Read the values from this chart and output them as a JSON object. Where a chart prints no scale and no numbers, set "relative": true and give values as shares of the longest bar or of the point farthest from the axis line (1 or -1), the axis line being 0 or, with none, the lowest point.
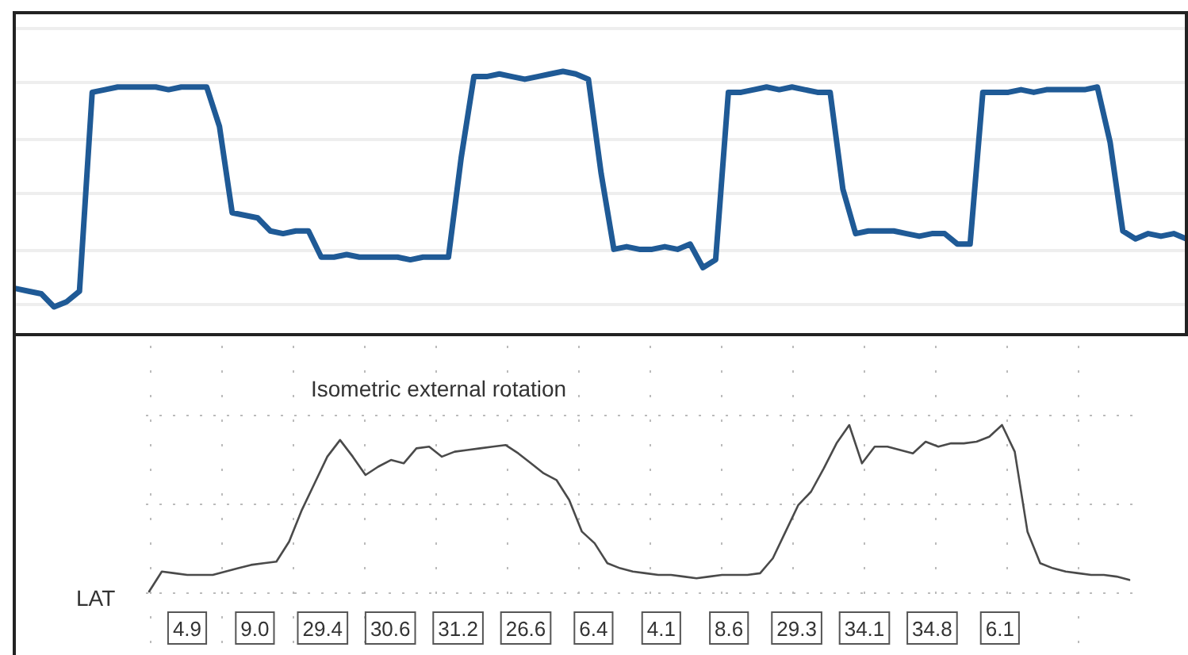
{
  "chart_data": [
    {
      "type": "line",
      "relative": true,
      "grid": "y",
      "color": "#1f5a96",
      "categories": [
        null,
        null,
        null,
        null,
        null,
        null,
        null,
        null,
        null,
        null,
        null,
        null,
        null,
        null,
        null,
        null,
        null,
        null,
        null,
        null,
        null,
        null,
        null,
        null,
        null,
        null,
        null,
        null,
        null,
        null,
        null,
        null,
        null,
        null,
        null,
        null,
        null,
        null,
        null,
        null,
        null,
        null,
        null,
        null,
        null,
        null,
        null,
        null,
        null,
        null,
        null,
        null,
        null,
        null,
        null,
        null,
        null,
        null,
        null,
        null,
        null,
        null,
        null,
        null,
        null,
        null,
        null,
        null,
        null,
        null,
        null,
        null,
        null,
        null,
        null,
        null,
        null,
        null,
        null,
        null,
        null,
        null,
        null,
        null,
        null,
        null,
        null,
        null,
        null,
        null,
        null,
        null,
        null
      ],
      "values": [
        0.17,
        0.16,
        0.15,
        0.1,
        0.12,
        0.16,
        0.92,
        0.93,
        0.94,
        0.94,
        0.94,
        0.94,
        0.93,
        0.94,
        0.94,
        0.94,
        0.79,
        0.46,
        0.45,
        0.44,
        0.39,
        0.38,
        0.39,
        0.39,
        0.29,
        0.29,
        0.3,
        0.29,
        0.29,
        0.29,
        0.29,
        0.28,
        0.29,
        0.29,
        0.29,
        0.67,
        0.98,
        0.98,
        0.99,
        0.98,
        0.97,
        0.98,
        0.99,
        1,
        0.99,
        0.97,
        0.61,
        0.32,
        0.33,
        0.32,
        0.32,
        0.33,
        0.32,
        0.34,
        0.25,
        0.28,
        0.92,
        0.92,
        0.93,
        0.94,
        0.93,
        0.94,
        0.93,
        0.92,
        0.92,
        0.55,
        0.38,
        0.39,
        0.39,
        0.39,
        0.38,
        0.37,
        0.38,
        0.38,
        0.34,
        0.34,
        0.92,
        0.92,
        0.92,
        0.93,
        0.92,
        0.93,
        0.93,
        0.93,
        0.93,
        0.94,
        0.73,
        0.39,
        0.36,
        0.38,
        0.37,
        0.38,
        0.36
      ]
    },
    {
      "type": "line",
      "relative": true,
      "grid": true,
      "color": "#4a4a4a",
      "title": "Isometric external rotation",
      "ylabel": "LAT",
      "categories": [
        null,
        null,
        null,
        null,
        null,
        null,
        null,
        null,
        null,
        null,
        null,
        null,
        null,
        null,
        null,
        null,
        null,
        null,
        null,
        null,
        null,
        null,
        null,
        null,
        null,
        null,
        null,
        null,
        null,
        null,
        null,
        null,
        null,
        null,
        null,
        null,
        null,
        null,
        null,
        null,
        null,
        null,
        null,
        null,
        null,
        null,
        null,
        null,
        null,
        null,
        null,
        null,
        null,
        null,
        null,
        null,
        null,
        null,
        null,
        null,
        null,
        null,
        null,
        null,
        null,
        null,
        null,
        null,
        null,
        null,
        null,
        null,
        null,
        null,
        null,
        null,
        null,
        null
      ],
      "values": [
        0,
        0.12,
        0.11,
        0.1,
        0.1,
        0.1,
        0.12,
        0.14,
        0.16,
        0.17,
        0.18,
        0.3,
        0.49,
        0.65,
        0.81,
        0.91,
        0.81,
        0.7,
        0.75,
        0.79,
        0.77,
        0.86,
        0.87,
        0.81,
        0.84,
        0.85,
        0.86,
        0.87,
        0.88,
        0.83,
        0.77,
        0.71,
        0.67,
        0.55,
        0.36,
        0.29,
        0.17,
        0.14,
        0.12,
        0.11,
        0.1,
        0.1,
        0.09,
        0.08,
        0.09,
        0.1,
        0.1,
        0.1,
        0.11,
        0.2,
        0.36,
        0.52,
        0.6,
        0.74,
        0.89,
        1,
        0.77,
        0.87,
        0.87,
        0.85,
        0.83,
        0.9,
        0.87,
        0.89,
        0.89,
        0.9,
        0.93,
        1,
        0.84,
        0.36,
        0.17,
        0.14,
        0.12,
        0.11,
        0.1,
        0.1,
        0.09,
        0.07
      ],
      "annotations": [
        "4.9",
        "9.0",
        "29.4",
        "30.6",
        "31.2",
        "26.6",
        "6.4",
        "4.1",
        "8.6",
        "29.3",
        "34.1",
        "34.8",
        "6.1"
      ]
    }
  ]
}
